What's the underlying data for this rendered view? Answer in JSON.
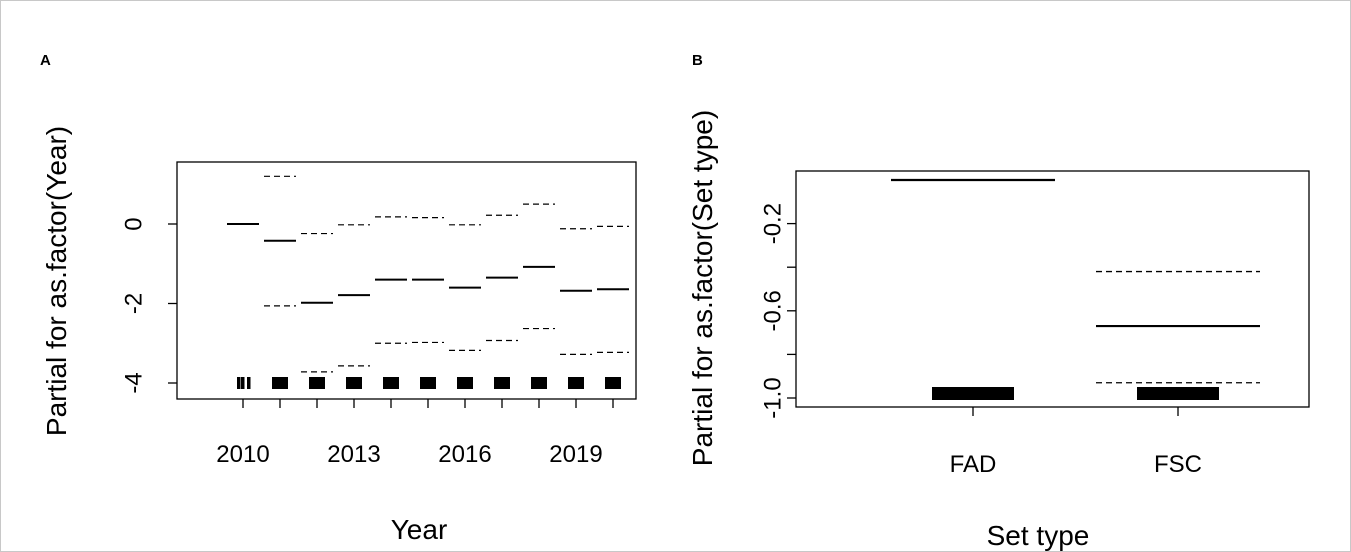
{
  "panels": {
    "a": {
      "letter": "A"
    },
    "b": {
      "letter": "B"
    }
  },
  "chart_data": [
    {
      "type": "line",
      "panel": "A",
      "xlabel": "Year",
      "ylabel": "Partial for as.factor(Year)",
      "x_tick_labels": [
        "2010",
        "2013",
        "2016",
        "2019"
      ],
      "y_ticks": [
        0,
        -2,
        -4
      ],
      "y_tick_labels": [
        "0",
        "-2",
        "-4"
      ],
      "ylim": [
        -4.4,
        1.5
      ],
      "categories": [
        "2010",
        "2011",
        "2012",
        "2013",
        "2014",
        "2015",
        "2016",
        "2017",
        "2018",
        "2019",
        "2020"
      ],
      "series": [
        {
          "values": [
            0.0,
            -0.42,
            -1.98,
            -1.79,
            -1.4,
            -1.4,
            -1.6,
            -1.35,
            -1.08,
            -1.68,
            -1.64
          ]
        },
        {
          "values": [
            null,
            1.2,
            -0.24,
            -0.02,
            0.18,
            0.16,
            -0.02,
            0.22,
            0.5,
            -0.12,
            -0.06
          ]
        },
        {
          "values": [
            null,
            -2.06,
            -3.72,
            -3.57,
            -3.0,
            -2.98,
            -3.18,
            -2.93,
            -2.63,
            -3.28,
            -3.23
          ]
        }
      ],
      "rug": {
        "y": -4.0,
        "x": [
          2010,
          2011,
          2012,
          2013,
          2014,
          2015,
          2016,
          2017,
          2018,
          2019,
          2020
        ]
      }
    },
    {
      "type": "line",
      "panel": "B",
      "xlabel": "Set type",
      "ylabel": "Partial for as.factor(Set type)",
      "categories": [
        "FAD",
        "FSC"
      ],
      "y_ticks": [
        -0.2,
        -0.6,
        -1.0
      ],
      "y_tick_labels": [
        "-0.2",
        "-0.6",
        "-1.0"
      ],
      "ylim": [
        -1.04,
        0.04
      ],
      "series": [
        {
          "values": [
            0.0,
            -0.67
          ]
        },
        {
          "values": [
            null,
            -0.42
          ]
        },
        {
          "values": [
            null,
            -0.93
          ]
        }
      ],
      "rug": {
        "y": -1.0
      }
    }
  ]
}
